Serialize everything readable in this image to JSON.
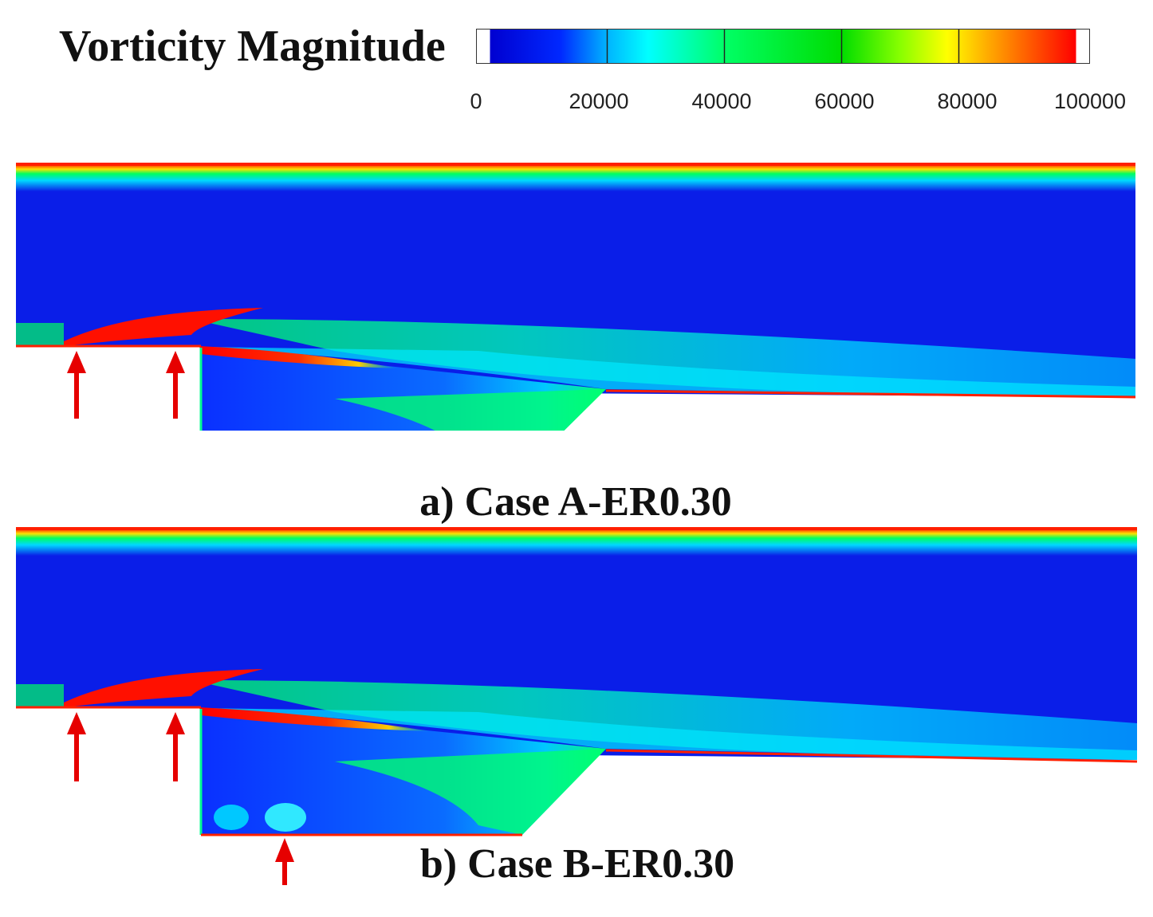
{
  "legend": {
    "title": "Vorticity Magnitude",
    "ticks": [
      "0",
      "20000",
      "40000",
      "60000",
      "80000",
      "100000"
    ],
    "colors": [
      "#0000d8",
      "#006cff",
      "#00e8ff",
      "#00ff7a",
      "#00e000",
      "#6cff00",
      "#ffff00",
      "#ff9900",
      "#ff0000"
    ]
  },
  "panels": [
    {
      "caption": "a) Case A-ER0.30",
      "marker_count": 2
    },
    {
      "caption": "b) Case B-ER0.30",
      "marker_count": 3
    }
  ],
  "colors": {
    "marker": "#e60000",
    "wall": "#ff2000",
    "background": "#0a1ee8"
  }
}
